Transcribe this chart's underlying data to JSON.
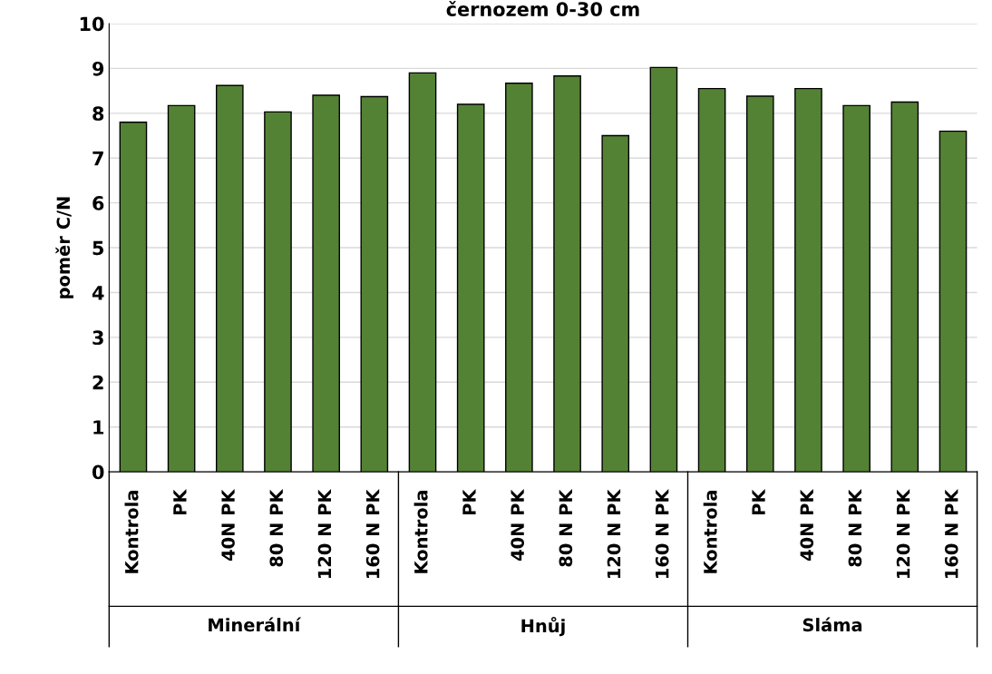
{
  "chart_data": {
    "type": "bar",
    "title": "černozem 0-30 cm",
    "ylabel": "poměr C/N",
    "categories": [
      "Kontrola",
      "PK",
      "40N PK",
      "80 N PK",
      "120 N PK",
      "160 N PK",
      "Kontrola",
      "PK",
      "40N PK",
      "80 N PK",
      "120 N PK",
      "160 N PK",
      "Kontrola",
      "PK",
      "40N PK",
      "80 N PK",
      "120 N PK",
      "160 N PK"
    ],
    "values": [
      7.8,
      8.17,
      8.62,
      8.03,
      8.4,
      8.37,
      8.9,
      8.2,
      8.67,
      8.83,
      7.5,
      9.02,
      8.55,
      8.38,
      8.55,
      8.17,
      8.25,
      7.6
    ],
    "color": "#548235",
    "annotations": [
      "Minerální",
      "Hnůj",
      "Sláma"
    ],
    "ylim": [
      0,
      10
    ],
    "yticks": [
      0,
      1,
      2,
      3,
      4,
      5,
      6,
      7,
      8,
      9,
      10
    ],
    "grid": "y"
  }
}
